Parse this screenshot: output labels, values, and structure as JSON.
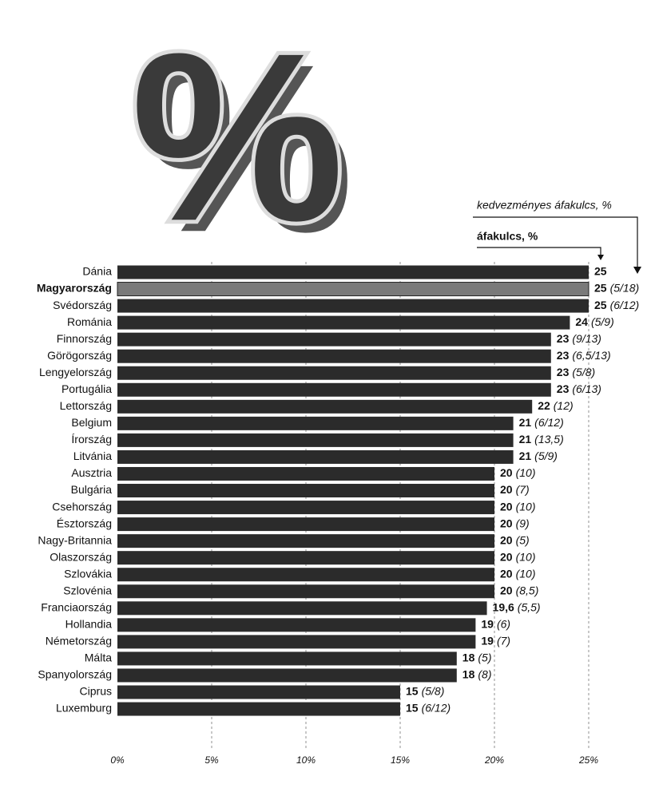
{
  "chart_data": {
    "type": "bar",
    "orientation": "horizontal",
    "categories": [
      "Dánia",
      "Magyarország",
      "Svédország",
      "Románia",
      "Finnország",
      "Görögország",
      "Lengyelország",
      "Portugália",
      "Lettország",
      "Belgium",
      "Írország",
      "Litvánia",
      "Ausztria",
      "Bulgária",
      "Csehország",
      "Észtország",
      "Nagy-Britannia",
      "Olaszország",
      "Szlovákia",
      "Szlovénia",
      "Franciaország",
      "Hollandia",
      "Németország",
      "Málta",
      "Spanyolország",
      "Ciprus",
      "Luxemburg"
    ],
    "values": [
      25,
      25,
      25,
      24,
      23,
      23,
      23,
      23,
      22,
      21,
      21,
      21,
      20,
      20,
      20,
      20,
      20,
      20,
      20,
      20,
      19.6,
      19,
      19,
      18,
      18,
      15,
      15
    ],
    "value_labels": [
      "25",
      "25",
      "25",
      "24",
      "23",
      "23",
      "23",
      "23",
      "22",
      "21",
      "21",
      "21",
      "20",
      "20",
      "20",
      "20",
      "20",
      "20",
      "20",
      "20",
      "19,6",
      "19",
      "19",
      "18",
      "18",
      "15",
      "15"
    ],
    "reduced_rates": [
      null,
      "(5/18)",
      "(6/12)",
      "(5/9)",
      "(9/13)",
      "(6,5/13)",
      "(5/8)",
      "(6/13)",
      "(12)",
      "(6/12)",
      "(13,5)",
      "(5/9)",
      "(10)",
      "(7)",
      "(10)",
      "(9)",
      "(5)",
      "(10)",
      "(10)",
      "(8,5)",
      "(5,5)",
      "(6)",
      "(7)",
      "(5)",
      "(8)",
      "(5/8)",
      "(6/12)"
    ],
    "rate_annotation": "áfakulcs, %",
    "reduced_annotation": "kedvezményes áfakulcs, %",
    "color": "#2b2b2b",
    "highlight": {
      "category": "Magyarország",
      "color": "#7a7a7a"
    },
    "xlim": [
      0,
      25
    ],
    "xticks": [
      {
        "value": 0,
        "label": "0%"
      },
      {
        "value": 5,
        "label": "5%"
      },
      {
        "value": 10,
        "label": "10%"
      },
      {
        "value": 15,
        "label": "15%"
      },
      {
        "value": 20,
        "label": "20%"
      },
      {
        "value": 25,
        "label": "25%"
      }
    ],
    "grid": true
  }
}
